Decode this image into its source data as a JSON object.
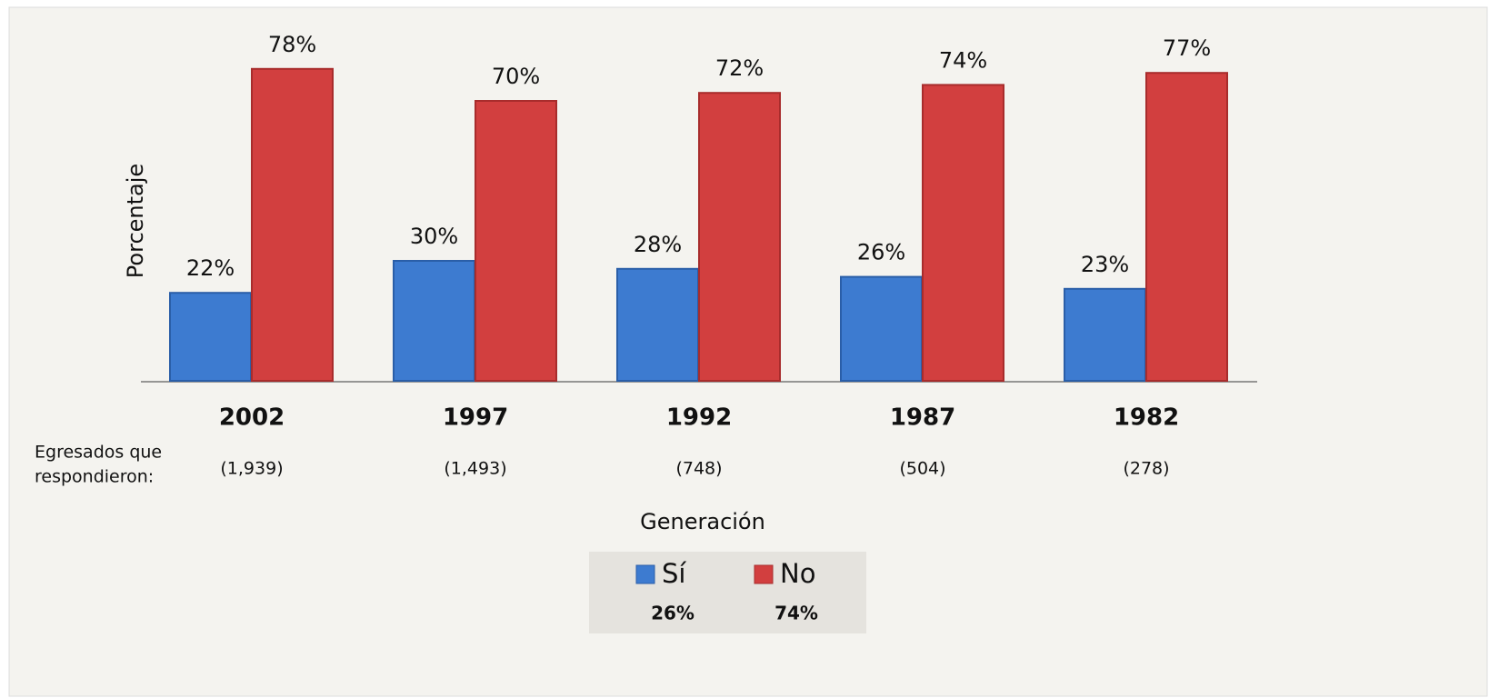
{
  "chart_data": {
    "type": "bar",
    "categories": [
      "2002",
      "1997",
      "1992",
      "1987",
      "1982"
    ],
    "series": [
      {
        "name": "Sí",
        "color": "#3d7bd0",
        "values": [
          22,
          30,
          28,
          26,
          23
        ],
        "value_labels": [
          "22%",
          "30%",
          "28%",
          "26%",
          "23%"
        ],
        "total_label": "26%"
      },
      {
        "name": "No",
        "color": "#d23f3f",
        "values": [
          78,
          70,
          72,
          74,
          77
        ],
        "value_labels": [
          "78%",
          "70%",
          "72%",
          "74%",
          "77%"
        ],
        "total_label": "74%"
      }
    ],
    "ylim": [
      0,
      80
    ],
    "ylabel": "Porcentaje",
    "xlabel": "Generación",
    "respondents_label": [
      "Egresados que",
      "respondieron:"
    ],
    "respondents": [
      "(1,939)",
      "(1,493)",
      "(748)",
      "(504)",
      "(278)"
    ]
  }
}
